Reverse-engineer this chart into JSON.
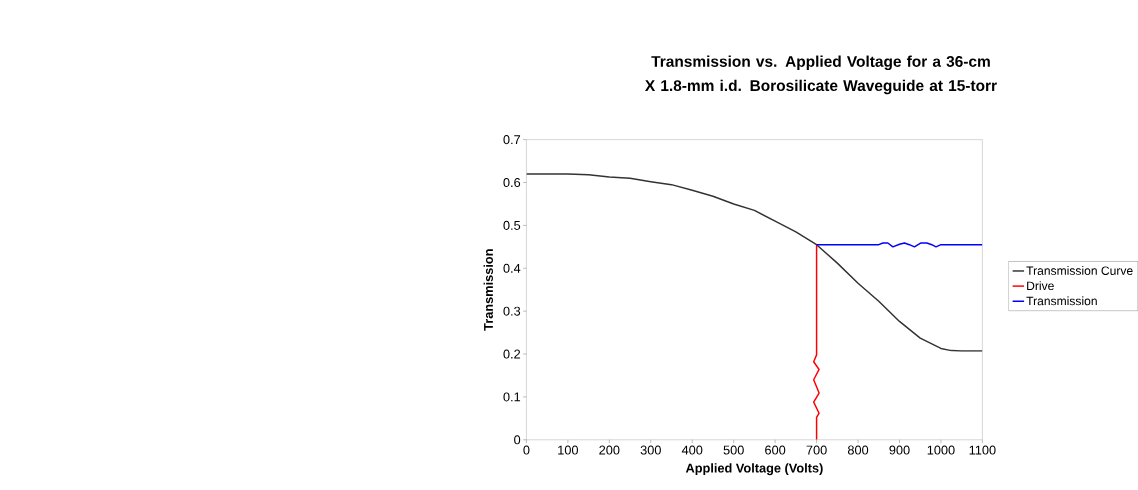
{
  "chart_data": {
    "type": "line",
    "title": "Transmission vs. Applied Voltage for a 36-cm X 1.8-mm i.d. Borosilicate Waveguide at 15-torr",
    "xlabel": "Applied Voltage (Volts)",
    "ylabel": "Transmission",
    "xlim": [
      0,
      1100
    ],
    "xticks": [
      0,
      100,
      200,
      300,
      400,
      500,
      600,
      700,
      800,
      900,
      1000,
      1100
    ],
    "ylim": [
      0,
      0.7
    ],
    "yticks": [
      0,
      0.1,
      0.2,
      0.3,
      0.4,
      0.5,
      0.6,
      0.7
    ],
    "grid": false,
    "legend": "right",
    "series": [
      {
        "name": "Transmission Curve",
        "color": "#333333",
        "x": [
          0,
          100,
          150,
          200,
          250,
          300,
          350,
          400,
          450,
          500,
          550,
          600,
          650,
          700,
          750,
          800,
          850,
          900,
          950,
          1000,
          1025,
          1050,
          1100
        ],
        "values": [
          0.62,
          0.62,
          0.618,
          0.613,
          0.61,
          0.602,
          0.595,
          0.582,
          0.568,
          0.55,
          0.535,
          0.51,
          0.485,
          0.455,
          0.412,
          0.365,
          0.323,
          0.276,
          0.237,
          0.213,
          0.208,
          0.207,
          0.207
        ]
      },
      {
        "name": "Drive",
        "color": "#ff0000",
        "x": [
          700,
          700,
          706,
          693,
          706,
          693,
          706,
          693,
          700,
          700
        ],
        "values": [
          0,
          0.052,
          0.062,
          0.088,
          0.109,
          0.14,
          0.164,
          0.182,
          0.198,
          0.455
        ]
      },
      {
        "name": "Transmission",
        "color": "#0000ff",
        "x": [
          700,
          850,
          860,
          872,
          884,
          900,
          912,
          924,
          936,
          952,
          966,
          978,
          988,
          1000,
          1100
        ],
        "values": [
          0.455,
          0.455,
          0.459,
          0.459,
          0.45,
          0.456,
          0.459,
          0.455,
          0.45,
          0.459,
          0.459,
          0.455,
          0.45,
          0.455,
          0.455
        ]
      }
    ]
  }
}
